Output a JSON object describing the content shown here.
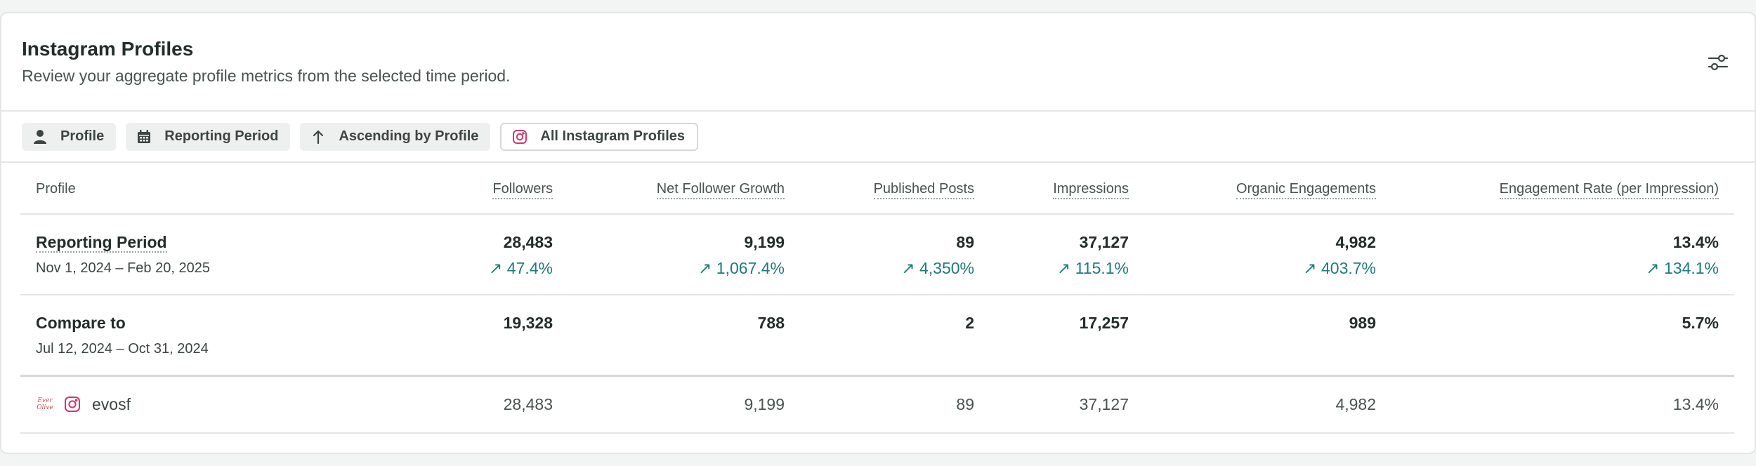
{
  "header": {
    "title": "Instagram Profiles",
    "subtitle": "Review your aggregate profile metrics from the selected time period.",
    "settings_icon": "sliders-icon"
  },
  "filters": [
    {
      "label": "Profile",
      "icon": "person-icon"
    },
    {
      "label": "Reporting Period",
      "icon": "calendar-icon"
    },
    {
      "label": "Ascending by Profile",
      "icon": "arrow-up-icon"
    },
    {
      "label": "All Instagram Profiles",
      "icon": "instagram-icon"
    }
  ],
  "colors": {
    "accent_teal": "#1e7b7a",
    "instagram": "#d6336c",
    "border": "#e3e6e5"
  },
  "table": {
    "columns": [
      "Profile",
      "Followers",
      "Net Follower Growth",
      "Published Posts",
      "Impressions",
      "Organic Engagements",
      "Engagement Rate (per Impression)"
    ],
    "reporting": {
      "title": "Reporting Period",
      "range": "Nov 1, 2024 – Feb 20, 2025",
      "values": [
        "28,483",
        "9,199",
        "89",
        "37,127",
        "4,982",
        "13.4%"
      ],
      "changes": [
        "↗ 47.4%",
        "↗ 1,067.4%",
        "↗ 4,350%",
        "↗ 115.1%",
        "↗ 403.7%",
        "↗ 134.1%"
      ]
    },
    "compare": {
      "title": "Compare to",
      "range": "Jul 12, 2024 – Oct 31, 2024",
      "values": [
        "19,328",
        "788",
        "2",
        "17,257",
        "989",
        "5.7%"
      ]
    },
    "profiles": [
      {
        "name": "evosf",
        "avatar_text_1": "Ever",
        "avatar_text_2": "Olive",
        "values": [
          "28,483",
          "9,199",
          "89",
          "37,127",
          "4,982",
          "13.4%"
        ]
      }
    ]
  }
}
